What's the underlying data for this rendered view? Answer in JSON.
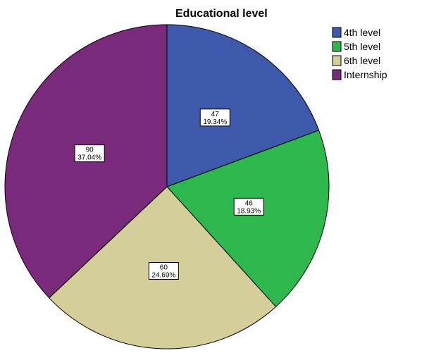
{
  "chart_data": {
    "type": "pie",
    "title": "Educational level",
    "legend_position": "top-right",
    "slices": [
      {
        "label": "4th level",
        "count": "47",
        "percent": "19.34%",
        "value": 47,
        "color": "#3e58ac"
      },
      {
        "label": "5th level",
        "count": "46",
        "percent": "18.93%",
        "value": 46,
        "color": "#2db84d"
      },
      {
        "label": "6th level",
        "count": "60",
        "percent": "24.69%",
        "value": 60,
        "color": "#d4ce99"
      },
      {
        "label": "Internship",
        "count": "90",
        "percent": "37.04%",
        "value": 90,
        "color": "#7a2a7a"
      }
    ]
  }
}
